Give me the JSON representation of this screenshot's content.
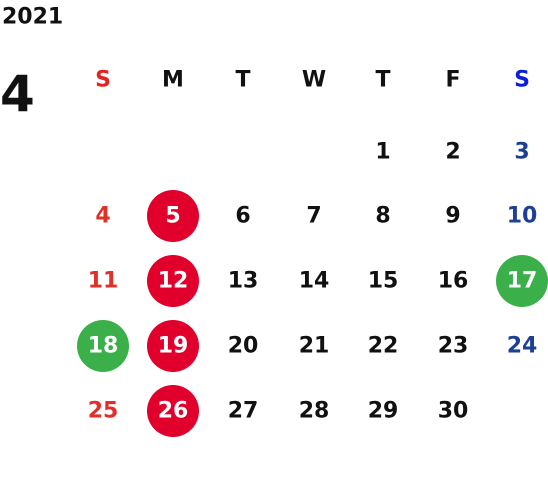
{
  "year": "2021",
  "month": "4",
  "weekdays": [
    "S",
    "M",
    "T",
    "W",
    "T",
    "F",
    "S"
  ],
  "header_colors": [
    "#e8231f",
    "#111111",
    "#111111",
    "#111111",
    "#111111",
    "#111111",
    "#0a1fd6"
  ],
  "day_colors": [
    "#e0302a",
    "#111111",
    "#111111",
    "#111111",
    "#111111",
    "#111111",
    "#1d3f94"
  ],
  "weeks": [
    [
      null,
      null,
      null,
      null,
      "1",
      "2",
      "3"
    ],
    [
      "4",
      {
        "text": "5",
        "circle": "#e0002b"
      },
      "6",
      "7",
      "8",
      "9",
      "10"
    ],
    [
      "11",
      {
        "text": "12",
        "circle": "#e0002b"
      },
      "13",
      "14",
      "15",
      "16",
      {
        "text": "17",
        "circle": "#3bb04a"
      }
    ],
    [
      {
        "text": "18",
        "circle": "#3bb04a"
      },
      {
        "text": "19",
        "circle": "#e0002b"
      },
      "20",
      "21",
      "22",
      "23",
      "24"
    ],
    [
      "25",
      {
        "text": "26",
        "circle": "#e0002b"
      },
      "27",
      "28",
      "29",
      "30",
      null
    ]
  ]
}
